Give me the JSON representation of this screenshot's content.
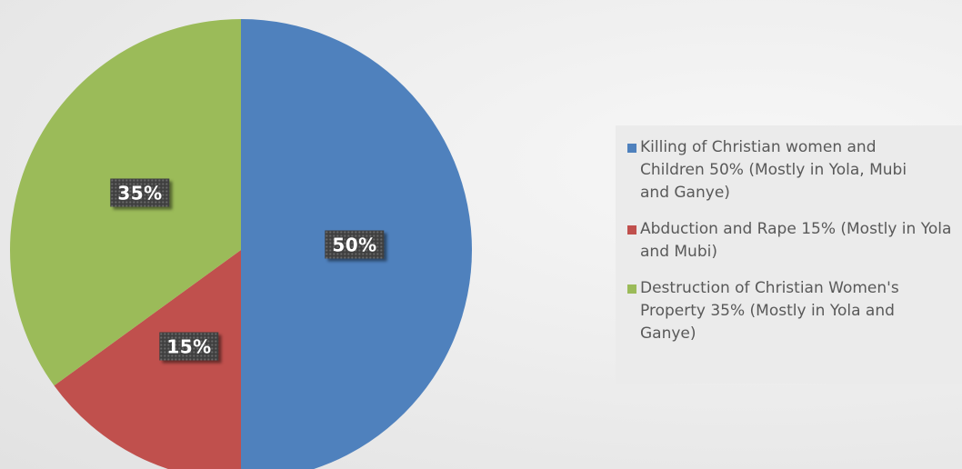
{
  "chart_data": {
    "type": "pie",
    "legend_position": "right",
    "slices": [
      {
        "name": "Killing of Christian women and Children 50% (Mostly in Yola, Mubi and Ganye)",
        "value": 50,
        "label": "50%",
        "color": "#4f81bd"
      },
      {
        "name": "Abduction and Rape 15% (Mostly in Yola and Mubi)",
        "value": 15,
        "label": "15%",
        "color": "#c0504d"
      },
      {
        "name": "Destruction of Christian Women's Property 35% (Mostly in Yola and Ganye)",
        "value": 35,
        "label": "35%",
        "color": "#9bbb59"
      }
    ]
  }
}
